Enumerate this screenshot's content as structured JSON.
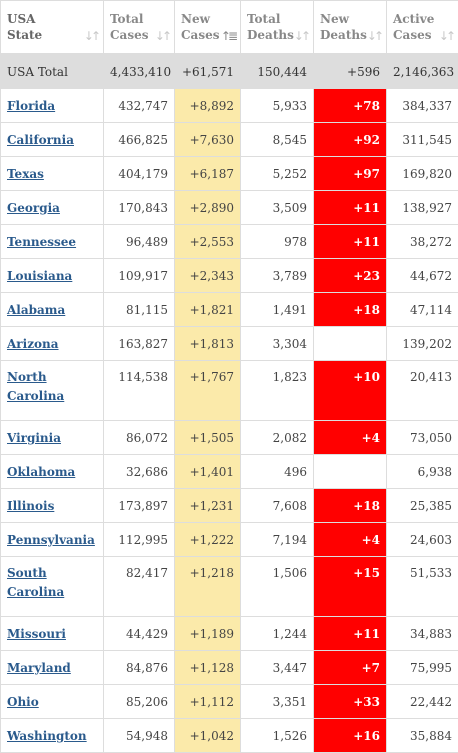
{
  "headers": [
    {
      "label": "USA State",
      "name": "header-usa-state",
      "sort_active": false
    },
    {
      "label": "Total Cases",
      "name": "header-total-cases",
      "sort_active": false
    },
    {
      "label": "New Cases",
      "name": "header-new-cases",
      "sort_active": true
    },
    {
      "label": "Total Deaths",
      "name": "header-total-deaths",
      "sort_active": false
    },
    {
      "label": "New Deaths",
      "name": "header-new-deaths",
      "sort_active": false
    },
    {
      "label": "Active Cases",
      "name": "header-active-cases",
      "sort_active": false
    }
  ],
  "sort_icon": "sort-arrows-icon",
  "total_row": {
    "state": "USA Total",
    "total_cases": "4,433,410",
    "new_cases": "+61,571",
    "total_deaths": "150,444",
    "new_deaths": "+596",
    "active_cases": "2,146,363"
  },
  "rows": [
    {
      "state": "Florida",
      "total_cases": "432,747",
      "new_cases": "+8,892",
      "total_deaths": "5,933",
      "new_deaths": "+78",
      "active_cases": "384,337",
      "tall": false
    },
    {
      "state": "California",
      "total_cases": "466,825",
      "new_cases": "+7,630",
      "total_deaths": "8,545",
      "new_deaths": "+92",
      "active_cases": "311,545",
      "tall": false
    },
    {
      "state": "Texas",
      "total_cases": "404,179",
      "new_cases": "+6,187",
      "total_deaths": "5,252",
      "new_deaths": "+97",
      "active_cases": "169,820",
      "tall": false
    },
    {
      "state": "Georgia",
      "total_cases": "170,843",
      "new_cases": "+2,890",
      "total_deaths": "3,509",
      "new_deaths": "+11",
      "active_cases": "138,927",
      "tall": false
    },
    {
      "state": "Tennessee",
      "total_cases": "96,489",
      "new_cases": "+2,553",
      "total_deaths": "978",
      "new_deaths": "+11",
      "active_cases": "38,272",
      "tall": false
    },
    {
      "state": "Louisiana",
      "total_cases": "109,917",
      "new_cases": "+2,343",
      "total_deaths": "3,789",
      "new_deaths": "+23",
      "active_cases": "44,672",
      "tall": false
    },
    {
      "state": "Alabama",
      "total_cases": "81,115",
      "new_cases": "+1,821",
      "total_deaths": "1,491",
      "new_deaths": "+18",
      "active_cases": "47,114",
      "tall": false
    },
    {
      "state": "Arizona",
      "total_cases": "163,827",
      "new_cases": "+1,813",
      "total_deaths": "3,304",
      "new_deaths": "",
      "active_cases": "139,202",
      "tall": false
    },
    {
      "state": "North Carolina",
      "total_cases": "114,538",
      "new_cases": "+1,767",
      "total_deaths": "1,823",
      "new_deaths": "+10",
      "active_cases": "20,413",
      "tall": true
    },
    {
      "state": "Virginia",
      "total_cases": "86,072",
      "new_cases": "+1,505",
      "total_deaths": "2,082",
      "new_deaths": "+4",
      "active_cases": "73,050",
      "tall": false
    },
    {
      "state": "Oklahoma",
      "total_cases": "32,686",
      "new_cases": "+1,401",
      "total_deaths": "496",
      "new_deaths": "",
      "active_cases": "6,938",
      "tall": false
    },
    {
      "state": "Illinois",
      "total_cases": "173,897",
      "new_cases": "+1,231",
      "total_deaths": "7,608",
      "new_deaths": "+18",
      "active_cases": "25,385",
      "tall": false
    },
    {
      "state": "Pennsylvania",
      "total_cases": "112,995",
      "new_cases": "+1,222",
      "total_deaths": "7,194",
      "new_deaths": "+4",
      "active_cases": "24,603",
      "tall": false
    },
    {
      "state": "South Carolina",
      "total_cases": "82,417",
      "new_cases": "+1,218",
      "total_deaths": "1,506",
      "new_deaths": "+15",
      "active_cases": "51,533",
      "tall": true
    },
    {
      "state": "Missouri",
      "total_cases": "44,429",
      "new_cases": "+1,189",
      "total_deaths": "1,244",
      "new_deaths": "+11",
      "active_cases": "34,883",
      "tall": false
    },
    {
      "state": "Maryland",
      "total_cases": "84,876",
      "new_cases": "+1,128",
      "total_deaths": "3,447",
      "new_deaths": "+7",
      "active_cases": "75,995",
      "tall": false
    },
    {
      "state": "Ohio",
      "total_cases": "85,206",
      "new_cases": "+1,112",
      "total_deaths": "3,351",
      "new_deaths": "+33",
      "active_cases": "22,442",
      "tall": false
    },
    {
      "state": "Washington",
      "total_cases": "54,948",
      "new_cases": "+1,042",
      "total_deaths": "1,526",
      "new_deaths": "+16",
      "active_cases": "35,884",
      "tall": false
    }
  ],
  "colors": {
    "header_text": "#888888",
    "link": "#2a5a8c",
    "new_cases_bg": "#fbeaaa",
    "new_deaths_bg": "#ff0000",
    "total_row_bg": "#dddddd"
  }
}
